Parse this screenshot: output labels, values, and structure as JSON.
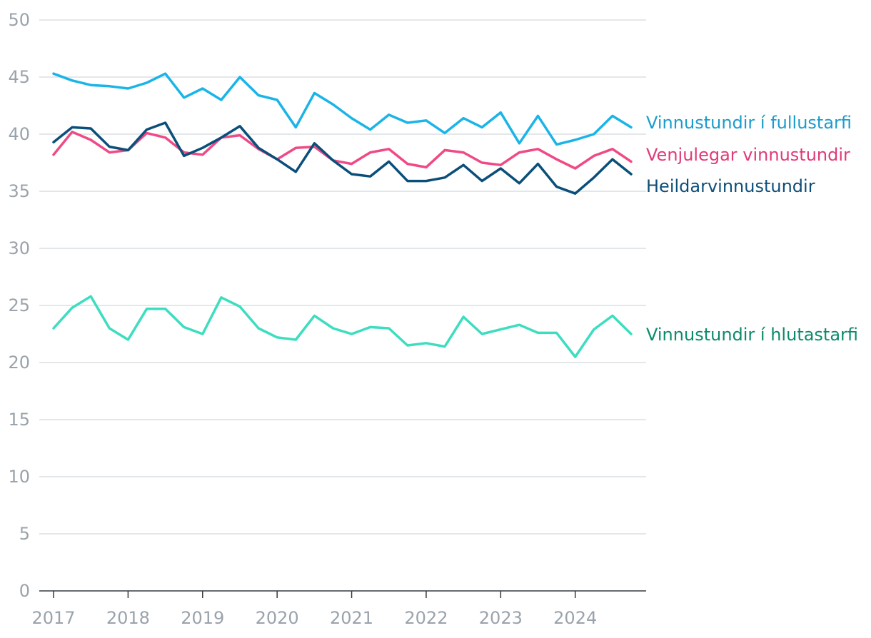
{
  "chart_data": {
    "type": "line",
    "title": "",
    "xlabel": "",
    "ylabel": "",
    "ylim": [
      0,
      50
    ],
    "y_ticks": [
      0,
      5,
      10,
      15,
      20,
      25,
      30,
      35,
      40,
      45,
      50
    ],
    "x_ticks": [
      "2017",
      "2018",
      "2019",
      "2020",
      "2021",
      "2022",
      "2023",
      "2024"
    ],
    "x_range": [
      2017,
      2024.75
    ],
    "grid": true,
    "legend": "right, inline at line ends",
    "x": [
      2017,
      2017.25,
      2017.5,
      2017.75,
      2018,
      2018.25,
      2018.5,
      2018.75,
      2019,
      2019.25,
      2019.5,
      2019.75,
      2020,
      2020.25,
      2020.5,
      2020.75,
      2021,
      2021.25,
      2021.5,
      2021.75,
      2022,
      2022.25,
      2022.5,
      2022.75,
      2023,
      2023.25,
      2023.5,
      2023.75,
      2024,
      2024.25,
      2024.5,
      2024.75
    ],
    "series": [
      {
        "name": "Vinnustundir í fullustarfi",
        "color": "#1ab4e8",
        "label_color": "#1a9ccc",
        "values": [
          45.3,
          44.7,
          44.3,
          44.2,
          44.0,
          44.5,
          45.3,
          43.2,
          44.0,
          43.0,
          45.0,
          43.4,
          43.0,
          40.6,
          43.6,
          42.6,
          41.4,
          40.4,
          41.7,
          41.0,
          41.2,
          40.1,
          41.4,
          40.6,
          41.9,
          39.2,
          41.6,
          39.1,
          39.5,
          40.0,
          41.6,
          40.6
        ]
      },
      {
        "name": "Venjulegar vinnustundir",
        "color": "#ef4a86",
        "label_color": "#e0397a",
        "values": [
          38.2,
          40.2,
          39.5,
          38.4,
          38.6,
          40.1,
          39.7,
          38.4,
          38.2,
          39.7,
          39.9,
          38.7,
          37.8,
          38.8,
          38.9,
          37.7,
          37.4,
          38.4,
          38.7,
          37.4,
          37.1,
          38.6,
          38.4,
          37.5,
          37.3,
          38.4,
          38.7,
          37.8,
          37.0,
          38.1,
          38.7,
          37.6
        ]
      },
      {
        "name": "Heildarvinnustundir",
        "color": "#0a4f7a",
        "label_color": "#0d4e79",
        "values": [
          39.3,
          40.6,
          40.5,
          38.9,
          38.6,
          40.4,
          41.0,
          38.1,
          38.8,
          39.7,
          40.7,
          38.8,
          37.8,
          36.7,
          39.2,
          37.7,
          36.5,
          36.3,
          37.6,
          35.9,
          35.9,
          36.2,
          37.3,
          35.9,
          37.0,
          35.7,
          37.4,
          35.4,
          34.8,
          36.2,
          37.8,
          36.5
        ]
      },
      {
        "name": "Vinnustundir í hlutastarfi",
        "color": "#3dddc0",
        "label_color": "#0c8a6c",
        "values": [
          23.0,
          24.8,
          25.8,
          23.0,
          22.0,
          24.7,
          24.7,
          23.1,
          22.5,
          25.7,
          24.9,
          23.0,
          22.2,
          22.0,
          24.1,
          23.0,
          22.5,
          23.1,
          23.0,
          21.5,
          21.7,
          21.4,
          24.0,
          22.5,
          22.9,
          23.3,
          22.6,
          22.6,
          20.5,
          22.9,
          24.1,
          22.5
        ]
      }
    ]
  }
}
